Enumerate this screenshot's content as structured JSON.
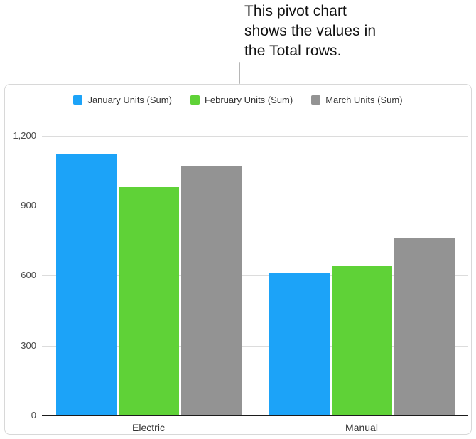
{
  "callout": {
    "lines": [
      "This pivot chart",
      "shows the values in",
      "the Total rows."
    ]
  },
  "chart_data": {
    "type": "bar",
    "title": "",
    "xlabel": "",
    "ylabel": "",
    "categories": [
      "Electric",
      "Manual"
    ],
    "series": [
      {
        "name": "January Units (Sum)",
        "color": "#1ca3f8",
        "values": [
          1120,
          610
        ]
      },
      {
        "name": "February Units (Sum)",
        "color": "#5fd237",
        "values": [
          980,
          640
        ]
      },
      {
        "name": "March Units (Sum)",
        "color": "#939393",
        "values": [
          1070,
          760
        ]
      }
    ],
    "ylim": [
      0,
      1200
    ],
    "yticks": {
      "values": [
        0,
        300,
        600,
        900,
        1200
      ],
      "labels": [
        "0",
        "300",
        "600",
        "900",
        "1,200"
      ]
    },
    "grid": true,
    "legend_position": "top"
  }
}
